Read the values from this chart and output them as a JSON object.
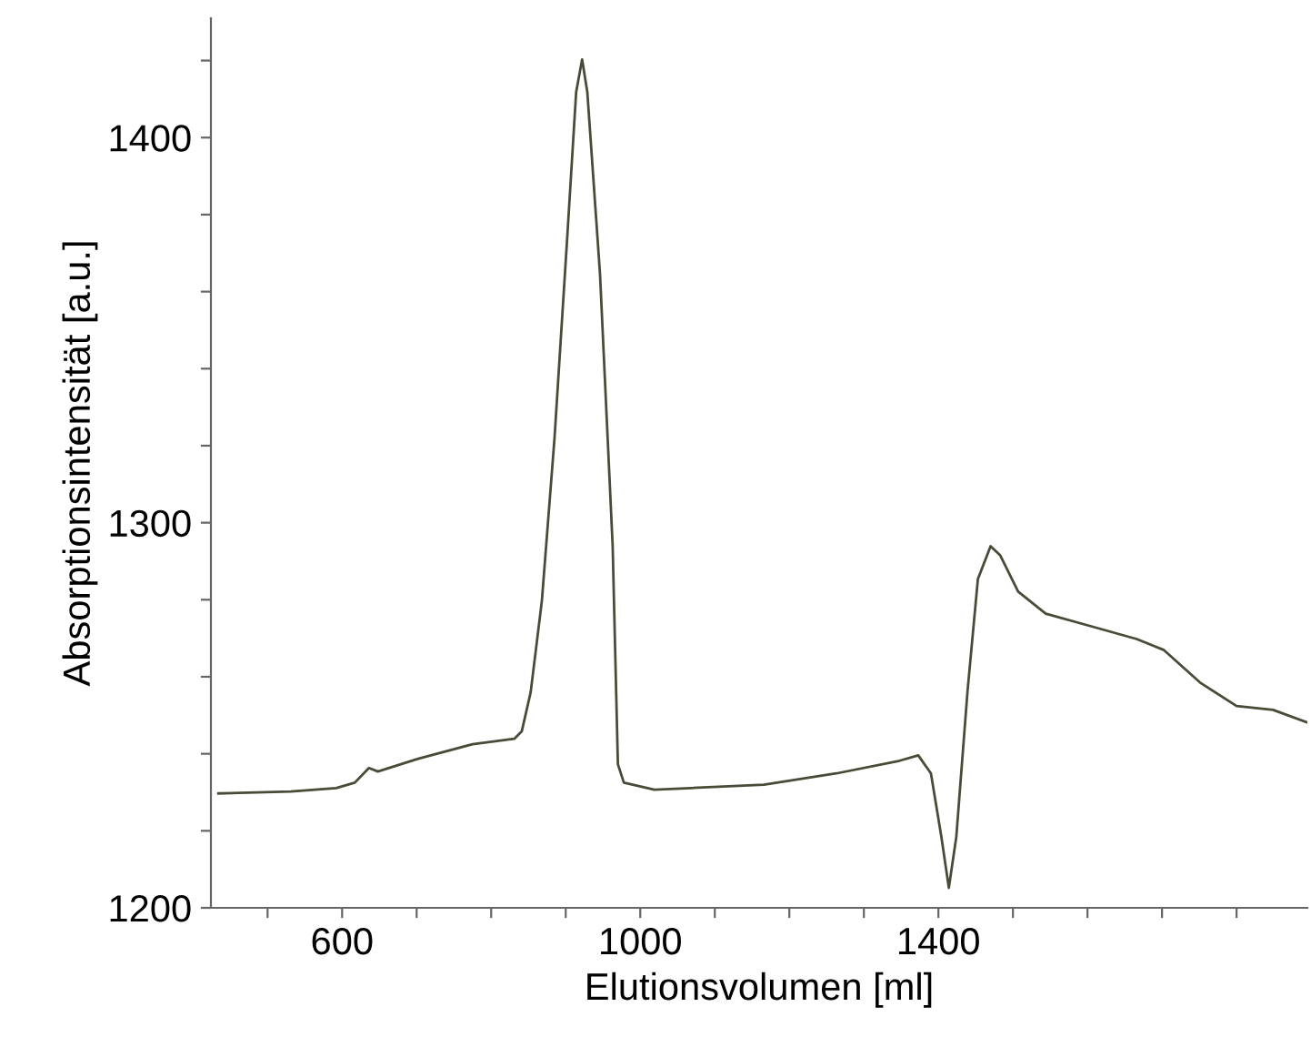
{
  "chart_data": {
    "type": "line",
    "xlabel": "Elutionsvolumen [ml]",
    "ylabel": "Absorptionsintensität [a.u.]",
    "x": [
      434,
      531,
      592,
      617,
      636,
      648,
      702,
      775,
      831,
      841,
      853,
      868,
      885,
      902,
      914,
      922,
      929,
      946,
      963,
      970,
      978,
      1019,
      1068,
      1166,
      1263,
      1348,
      1373,
      1390,
      1404,
      1414,
      1424,
      1439,
      1453,
      1470,
      1483,
      1507,
      1544,
      1605,
      1666,
      1702,
      1751,
      1800,
      1849,
      1895
    ],
    "series": [
      {
        "color": "#4a4a38",
        "values": [
          1229.7,
          1230.2,
          1231.1,
          1232.5,
          1236.3,
          1235.4,
          1238.7,
          1242.5,
          1243.9,
          1245.8,
          1256,
          1279.7,
          1322,
          1374,
          1411.8,
          1420.3,
          1411.8,
          1364.6,
          1293.9,
          1237.3,
          1232.5,
          1230.7,
          1231.1,
          1232,
          1234.9,
          1238.2,
          1239.6,
          1234.9,
          1218.4,
          1205.2,
          1218.4,
          1256.1,
          1285.4,
          1293.9,
          1291.5,
          1282.1,
          1276.4,
          1273.1,
          1269.8,
          1267,
          1258.5,
          1252.4,
          1251.4,
          1248.1
        ]
      }
    ],
    "xlim": [
      424,
      1895
    ],
    "ylim": [
      1200,
      1431
    ],
    "xticks": [
      {
        "value": 500,
        "label": null
      },
      600,
      {
        "value": 700,
        "label": null
      },
      {
        "value": 800,
        "label": null
      },
      {
        "value": 900,
        "label": null
      },
      1000,
      {
        "value": 1100,
        "label": null
      },
      {
        "value": 1200,
        "label": null
      },
      {
        "value": 1300,
        "label": null
      },
      1400,
      {
        "value": 1500,
        "label": null
      },
      {
        "value": 1600,
        "label": null
      },
      {
        "value": 1700,
        "label": null
      },
      {
        "value": 1800,
        "label": null
      }
    ],
    "yticks": [
      1200,
      {
        "value": 1220,
        "label": null
      },
      {
        "value": 1240,
        "label": null
      },
      {
        "value": 1260,
        "label": null
      },
      {
        "value": 1280,
        "label": null
      },
      1300,
      {
        "value": 1320,
        "label": null
      },
      {
        "value": 1340,
        "label": null
      },
      {
        "value": 1360,
        "label": null
      },
      {
        "value": 1380,
        "label": null
      },
      1400,
      {
        "value": 1420,
        "label": null
      }
    ],
    "grid": false,
    "legend": false,
    "line_style": "solid",
    "marker": "none"
  }
}
